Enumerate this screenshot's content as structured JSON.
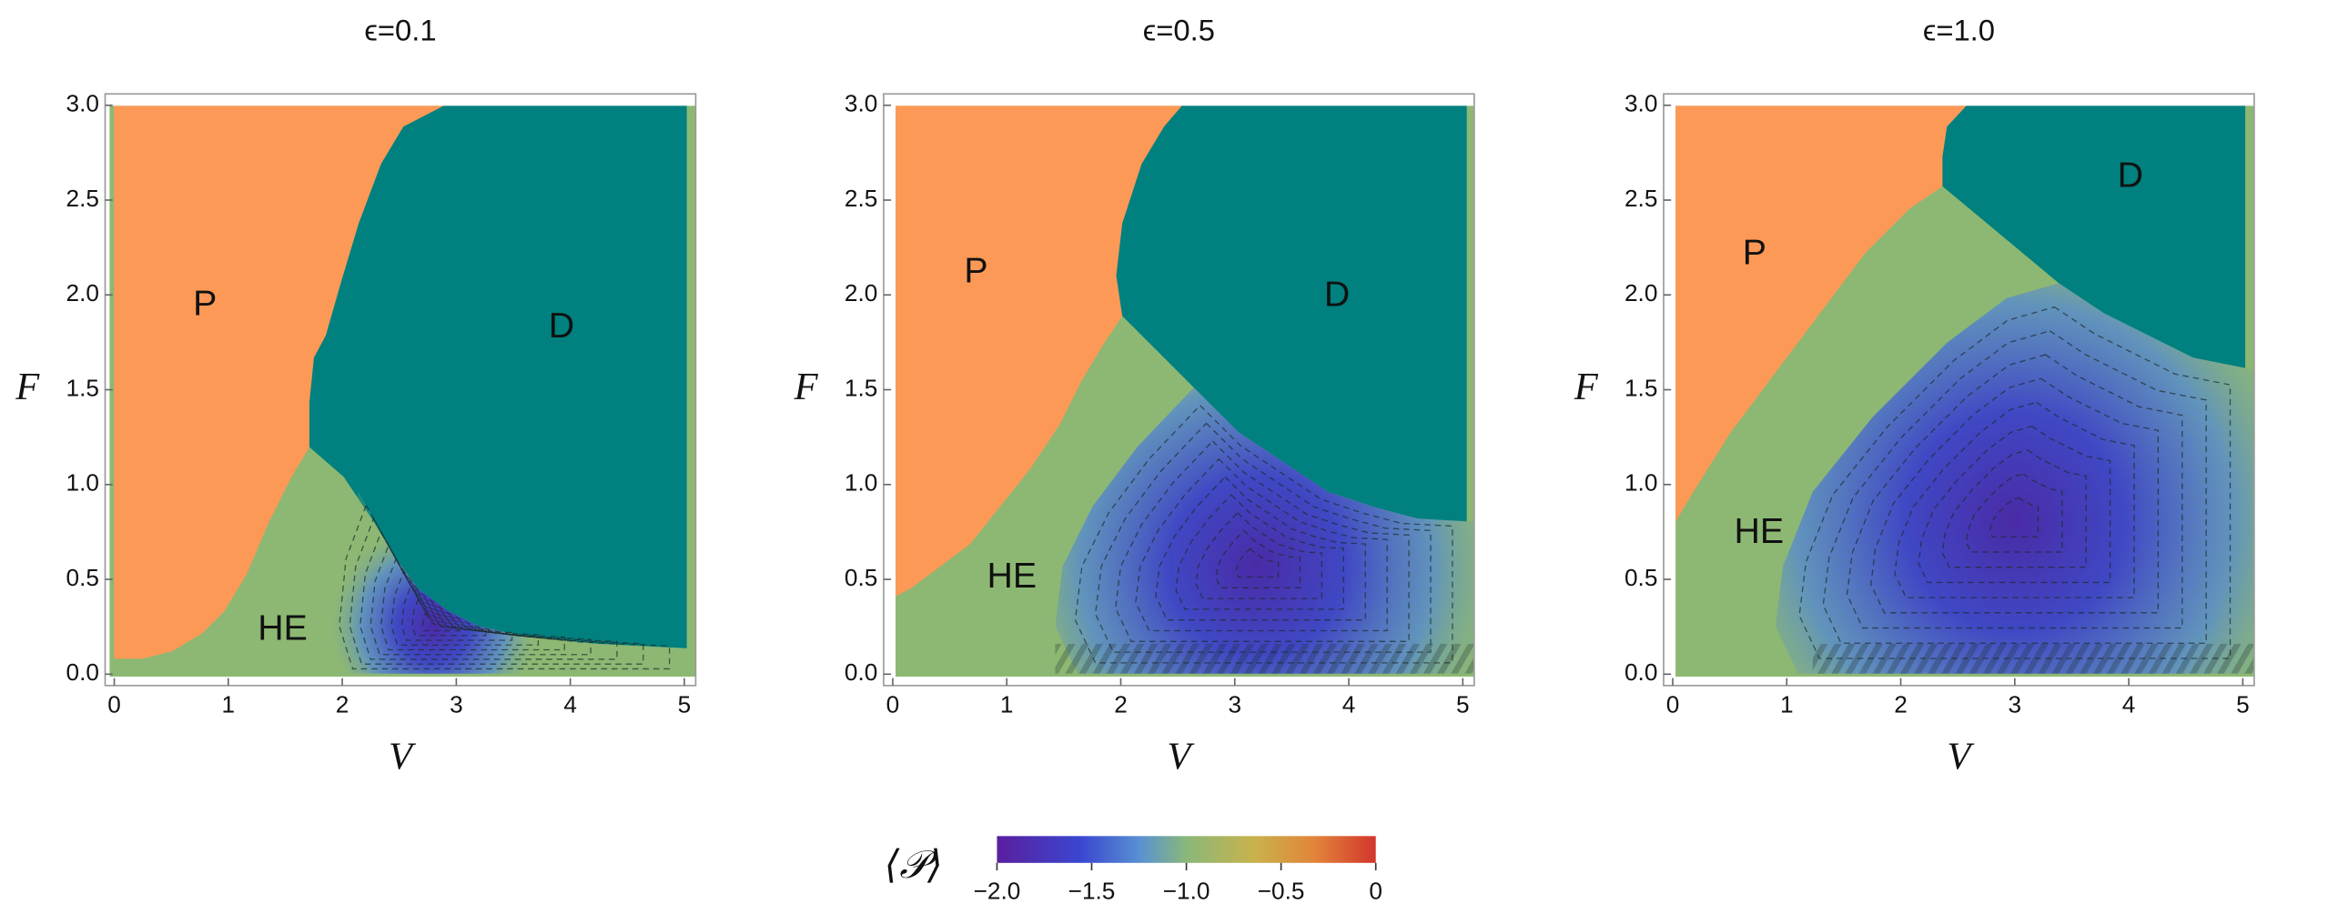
{
  "chart_data": [
    {
      "type": "contour",
      "title": "ϵ=0.1",
      "x_label": "V",
      "y_label": "F",
      "xlim": [
        -0.08,
        5.1
      ],
      "ylim": [
        -0.06,
        3.06
      ],
      "xticks": [
        0,
        1,
        2,
        3,
        4,
        5
      ],
      "yticks": [
        {
          "value": 0,
          "label": "0.0"
        },
        0.5,
        {
          "value": 1,
          "label": "1.0"
        },
        1.5,
        {
          "value": 2,
          "label": "2.0"
        },
        2.5,
        {
          "value": 3,
          "label": "3.0"
        }
      ],
      "annotations": [
        "P",
        "D",
        "HE"
      ]
    },
    {
      "type": "contour",
      "title": "ϵ=0.5",
      "x_label": "V",
      "y_label": "F",
      "xlim": [
        -0.08,
        5.1
      ],
      "ylim": [
        -0.06,
        3.06
      ],
      "xticks": [
        0,
        1,
        2,
        3,
        4,
        5
      ],
      "yticks": [
        {
          "value": 0,
          "label": "0.0"
        },
        0.5,
        {
          "value": 1,
          "label": "1.0"
        },
        1.5,
        {
          "value": 2,
          "label": "2.0"
        },
        2.5,
        {
          "value": 3,
          "label": "3.0"
        }
      ],
      "annotations": [
        "P",
        "D",
        "HE"
      ]
    },
    {
      "type": "contour",
      "title": "ϵ=1.0",
      "x_label": "V",
      "y_label": "F",
      "xlim": [
        -0.08,
        5.1
      ],
      "ylim": [
        -0.06,
        3.06
      ],
      "xticks": [
        0,
        1,
        2,
        3,
        4,
        5
      ],
      "yticks": [
        {
          "value": 0,
          "label": "0.0"
        },
        0.5,
        {
          "value": 1,
          "label": "1.0"
        },
        1.5,
        {
          "value": 2,
          "label": "2.0"
        },
        2.5,
        {
          "value": 3,
          "label": "3.0"
        }
      ],
      "annotations": [
        "P",
        "D",
        "HE"
      ]
    }
  ],
  "colorbar": {
    "label": "⟨𝒫⟩",
    "lim": [
      -2,
      0
    ],
    "ticks": [
      {
        "value": -2,
        "label": "−2.0"
      },
      {
        "value": -1.5,
        "label": "−1.5"
      },
      {
        "value": -1,
        "label": "−1.0"
      },
      {
        "value": -0.5,
        "label": "−0.5"
      },
      0
    ]
  }
}
